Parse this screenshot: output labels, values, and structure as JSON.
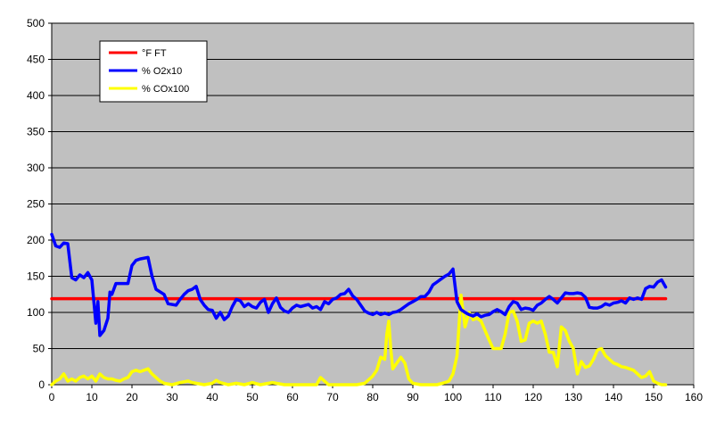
{
  "chart_data": {
    "type": "line",
    "title": "",
    "xlabel": "",
    "ylabel": "",
    "xlim": [
      0,
      160
    ],
    "ylim": [
      0,
      500
    ],
    "x_ticks": [
      0,
      10,
      20,
      30,
      40,
      50,
      60,
      70,
      80,
      90,
      100,
      110,
      120,
      130,
      140,
      150,
      160
    ],
    "y_ticks": [
      0,
      50,
      100,
      150,
      200,
      250,
      300,
      350,
      400,
      450,
      500
    ],
    "grid": "horizontal",
    "plot_background": "#c0c0c0",
    "legend_position": "top-left",
    "series": [
      {
        "name": "°F FT",
        "color": "#ff0000",
        "points": [
          [
            0,
            119
          ],
          [
            153,
            119
          ]
        ]
      },
      {
        "name": "% O2x10",
        "color": "#0000ff",
        "points": [
          [
            0,
            208
          ],
          [
            1,
            192
          ],
          [
            2,
            190
          ],
          [
            3,
            196
          ],
          [
            4,
            195
          ],
          [
            5,
            148
          ],
          [
            6,
            145
          ],
          [
            7,
            152
          ],
          [
            8,
            148
          ],
          [
            9,
            155
          ],
          [
            10,
            145
          ],
          [
            11,
            85
          ],
          [
            11.5,
            115
          ],
          [
            12,
            68
          ],
          [
            13,
            75
          ],
          [
            14,
            92
          ],
          [
            14.5,
            128
          ],
          [
            15,
            125
          ],
          [
            16,
            140
          ],
          [
            17,
            140
          ],
          [
            18,
            140
          ],
          [
            19,
            140
          ],
          [
            20,
            165
          ],
          [
            21,
            172
          ],
          [
            22,
            174
          ],
          [
            24,
            176
          ],
          [
            25,
            150
          ],
          [
            26,
            132
          ],
          [
            28,
            125
          ],
          [
            29,
            112
          ],
          [
            31,
            110
          ],
          [
            32,
            118
          ],
          [
            33,
            125
          ],
          [
            34,
            130
          ],
          [
            35,
            132
          ],
          [
            36,
            136
          ],
          [
            37,
            118
          ],
          [
            38,
            110
          ],
          [
            39,
            104
          ],
          [
            40,
            103
          ],
          [
            41,
            92
          ],
          [
            42,
            100
          ],
          [
            43,
            90
          ],
          [
            44,
            95
          ],
          [
            45,
            108
          ],
          [
            46,
            118
          ],
          [
            47,
            116
          ],
          [
            48,
            108
          ],
          [
            49,
            112
          ],
          [
            50,
            108
          ],
          [
            51,
            106
          ],
          [
            52,
            114
          ],
          [
            53,
            118
          ],
          [
            54,
            100
          ],
          [
            55,
            112
          ],
          [
            56,
            120
          ],
          [
            57,
            107
          ],
          [
            58,
            102
          ],
          [
            59,
            100
          ],
          [
            60,
            106
          ],
          [
            61,
            110
          ],
          [
            62,
            108
          ],
          [
            64,
            111
          ],
          [
            65,
            106
          ],
          [
            66,
            108
          ],
          [
            67,
            104
          ],
          [
            68,
            115
          ],
          [
            69,
            112
          ],
          [
            70,
            118
          ],
          [
            71,
            120
          ],
          [
            72,
            125
          ],
          [
            73,
            126
          ],
          [
            74,
            132
          ],
          [
            75,
            123
          ],
          [
            76,
            118
          ],
          [
            77,
            110
          ],
          [
            78,
            102
          ],
          [
            79,
            99
          ],
          [
            80,
            97
          ],
          [
            81,
            100
          ],
          [
            82,
            97
          ],
          [
            83,
            99
          ],
          [
            84,
            97
          ],
          [
            85,
            100
          ],
          [
            86,
            101
          ],
          [
            87,
            104
          ],
          [
            88,
            108
          ],
          [
            89,
            112
          ],
          [
            90,
            115
          ],
          [
            91,
            118
          ],
          [
            92,
            122
          ],
          [
            93,
            122
          ],
          [
            94,
            128
          ],
          [
            95,
            138
          ],
          [
            96,
            142
          ],
          [
            97,
            146
          ],
          [
            98,
            150
          ],
          [
            99,
            153
          ],
          [
            100,
            160
          ],
          [
            101,
            115
          ],
          [
            102,
            104
          ],
          [
            103,
            100
          ],
          [
            104,
            97
          ],
          [
            105,
            95
          ],
          [
            106,
            98
          ],
          [
            107,
            94
          ],
          [
            108,
            96
          ],
          [
            109,
            97
          ],
          [
            110,
            101
          ],
          [
            111,
            104
          ],
          [
            112,
            101
          ],
          [
            113,
            97
          ],
          [
            114,
            108
          ],
          [
            115,
            115
          ],
          [
            116,
            113
          ],
          [
            117,
            104
          ],
          [
            118,
            106
          ],
          [
            119,
            105
          ],
          [
            120,
            103
          ],
          [
            121,
            110
          ],
          [
            122,
            113
          ],
          [
            123,
            118
          ],
          [
            124,
            122
          ],
          [
            125,
            118
          ],
          [
            126,
            113
          ],
          [
            127,
            120
          ],
          [
            128,
            127
          ],
          [
            129,
            126
          ],
          [
            130,
            126
          ],
          [
            131,
            127
          ],
          [
            132,
            126
          ],
          [
            133,
            121
          ],
          [
            134,
            107
          ],
          [
            135,
            106
          ],
          [
            136,
            106
          ],
          [
            137,
            108
          ],
          [
            138,
            112
          ],
          [
            139,
            110
          ],
          [
            140,
            113
          ],
          [
            141,
            114
          ],
          [
            142,
            116
          ],
          [
            143,
            113
          ],
          [
            144,
            120
          ],
          [
            145,
            118
          ],
          [
            146,
            120
          ],
          [
            147,
            118
          ],
          [
            148,
            133
          ],
          [
            149,
            136
          ],
          [
            150,
            135
          ],
          [
            151,
            142
          ],
          [
            152,
            145
          ],
          [
            153,
            135
          ]
        ]
      },
      {
        "name": "% COx100",
        "color": "#ffff00",
        "points": [
          [
            0,
            0
          ],
          [
            1,
            5
          ],
          [
            2,
            8
          ],
          [
            3,
            15
          ],
          [
            4,
            5
          ],
          [
            5,
            8
          ],
          [
            6,
            5
          ],
          [
            7,
            10
          ],
          [
            8,
            12
          ],
          [
            9,
            8
          ],
          [
            10,
            12
          ],
          [
            11,
            5
          ],
          [
            12,
            15
          ],
          [
            13,
            10
          ],
          [
            14,
            8
          ],
          [
            15,
            8
          ],
          [
            16,
            6
          ],
          [
            17,
            5
          ],
          [
            18,
            8
          ],
          [
            19,
            10
          ],
          [
            20,
            18
          ],
          [
            21,
            20
          ],
          [
            22,
            18
          ],
          [
            23,
            20
          ],
          [
            24,
            22
          ],
          [
            25,
            15
          ],
          [
            26,
            10
          ],
          [
            27,
            5
          ],
          [
            28,
            2
          ],
          [
            30,
            0
          ],
          [
            32,
            3
          ],
          [
            34,
            5
          ],
          [
            35,
            3
          ],
          [
            36,
            2
          ],
          [
            38,
            0
          ],
          [
            40,
            2
          ],
          [
            41,
            6
          ],
          [
            42,
            3
          ],
          [
            44,
            0
          ],
          [
            46,
            2
          ],
          [
            48,
            0
          ],
          [
            50,
            3
          ],
          [
            52,
            0
          ],
          [
            55,
            3
          ],
          [
            58,
            0
          ],
          [
            62,
            0
          ],
          [
            66,
            0
          ],
          [
            67,
            10
          ],
          [
            68,
            5
          ],
          [
            69,
            0
          ],
          [
            72,
            0
          ],
          [
            76,
            0
          ],
          [
            78,
            2
          ],
          [
            80,
            12
          ],
          [
            81,
            20
          ],
          [
            82,
            38
          ],
          [
            83,
            35
          ],
          [
            83.5,
            70
          ],
          [
            84,
            88
          ],
          [
            84.5,
            50
          ],
          [
            85,
            22
          ],
          [
            86,
            30
          ],
          [
            87,
            38
          ],
          [
            88,
            30
          ],
          [
            89,
            8
          ],
          [
            90,
            2
          ],
          [
            92,
            0
          ],
          [
            96,
            0
          ],
          [
            98,
            3
          ],
          [
            99,
            5
          ],
          [
            100,
            15
          ],
          [
            101,
            40
          ],
          [
            102,
            124
          ],
          [
            103,
            80
          ],
          [
            104,
            100
          ],
          [
            105,
            90
          ],
          [
            106,
            92
          ],
          [
            107,
            88
          ],
          [
            108,
            75
          ],
          [
            109,
            62
          ],
          [
            110,
            50
          ],
          [
            112,
            50
          ],
          [
            113,
            70
          ],
          [
            114,
            100
          ],
          [
            115,
            102
          ],
          [
            116,
            88
          ],
          [
            117,
            60
          ],
          [
            118,
            62
          ],
          [
            119,
            85
          ],
          [
            120,
            88
          ],
          [
            121,
            85
          ],
          [
            122,
            88
          ],
          [
            123,
            70
          ],
          [
            124,
            45
          ],
          [
            125,
            45
          ],
          [
            126,
            25
          ],
          [
            127,
            80
          ],
          [
            128,
            75
          ],
          [
            129,
            60
          ],
          [
            130,
            50
          ],
          [
            131,
            15
          ],
          [
            132,
            32
          ],
          [
            133,
            24
          ],
          [
            134,
            26
          ],
          [
            135,
            35
          ],
          [
            136,
            48
          ],
          [
            137,
            50
          ],
          [
            138,
            40
          ],
          [
            139,
            35
          ],
          [
            140,
            30
          ],
          [
            141,
            28
          ],
          [
            142,
            25
          ],
          [
            143,
            24
          ],
          [
            144,
            22
          ],
          [
            145,
            20
          ],
          [
            146,
            15
          ],
          [
            147,
            10
          ],
          [
            148,
            12
          ],
          [
            149,
            18
          ],
          [
            150,
            5
          ],
          [
            151,
            2
          ],
          [
            152,
            0
          ],
          [
            153,
            0
          ]
        ]
      }
    ]
  }
}
